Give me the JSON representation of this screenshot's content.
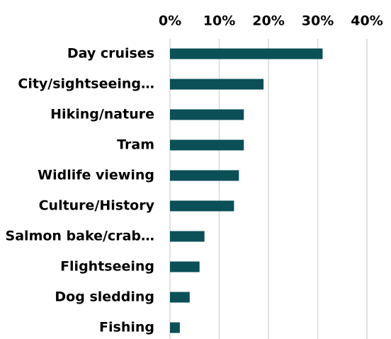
{
  "chart_data": {
    "type": "barh",
    "categories": [
      "Day cruises",
      "City/sightseeing…",
      "Hiking/nature",
      "Tram",
      "Widlife viewing",
      "Culture/History",
      "Salmon bake/crab…",
      "Flightseeing",
      "Dog sledding",
      "Fishing"
    ],
    "values": [
      31,
      19,
      15,
      15,
      14,
      13,
      7,
      6,
      4,
      2
    ],
    "color": "#0b4f57",
    "xlim": [
      0,
      40
    ],
    "xticks": [
      {
        "value": 0,
        "label": "0%"
      },
      {
        "value": 10,
        "label": "10%"
      },
      {
        "value": 20,
        "label": "20%"
      },
      {
        "value": 30,
        "label": "30%"
      },
      {
        "value": 40,
        "label": "40%"
      }
    ],
    "grid": true
  }
}
